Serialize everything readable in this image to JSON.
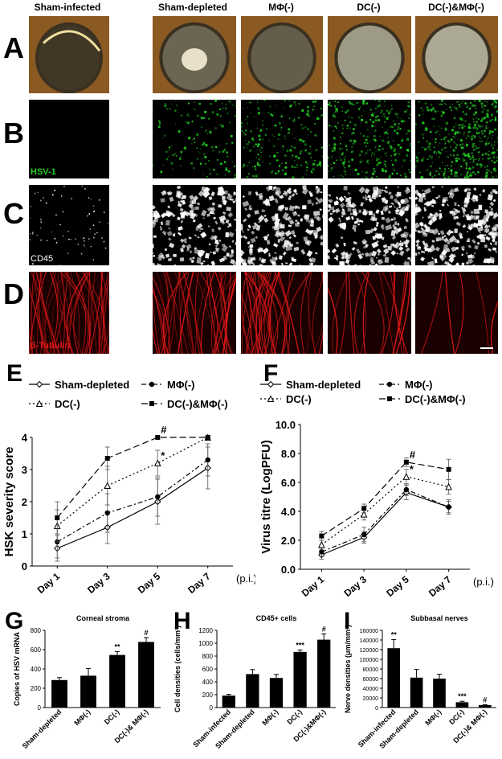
{
  "columns": [
    "Sham-infected",
    "Sham-depleted",
    "MΦ(-)",
    "DC(-)",
    "DC(-)&MΦ(-)"
  ],
  "rows": [
    "A",
    "B",
    "C",
    "D"
  ],
  "row_labels": {
    "B": "HSV-1",
    "C": "CD45",
    "D": "β-Tubulin"
  },
  "colors": {
    "hsv": "#22cc22",
    "cd45": "#ffffff",
    "tubulin": "#e01818"
  },
  "panels": {
    "E": "E",
    "F": "F",
    "G": "G",
    "H": "H",
    "I": "I"
  },
  "chart_data": [
    {
      "id": "E",
      "type": "line",
      "ylabel": "HSK severity score",
      "categories": [
        "Day 1",
        "Day 3",
        "Day 5",
        "Day 7"
      ],
      "x_suffix": "(p.i.)",
      "ylim": [
        0,
        4
      ],
      "yticks": [
        0,
        1,
        2,
        3,
        4
      ],
      "series": [
        {
          "name": "Sham-depleted",
          "values": [
            0.55,
            1.2,
            2.0,
            3.05
          ],
          "err": [
            0.4,
            0.5,
            0.7,
            0.65
          ],
          "marker": "diamond",
          "dash": ""
        },
        {
          "name": "MΦ(-)",
          "values": [
            0.75,
            1.65,
            2.15,
            3.3
          ],
          "err": [
            0.5,
            0.6,
            0.6,
            0.5
          ],
          "marker": "circle",
          "dash": "6,3,2,3"
        },
        {
          "name": "DC(-)",
          "values": [
            1.25,
            2.5,
            3.2,
            4.0
          ],
          "err": [
            0.5,
            0.6,
            0.4,
            0.0
          ],
          "marker": "triangle",
          "dash": "2,3"
        },
        {
          "name": "DC(-)&MΦ(-)",
          "values": [
            1.5,
            3.35,
            4.0,
            4.0
          ],
          "err": [
            0.5,
            0.35,
            0.0,
            0.0
          ],
          "marker": "square",
          "dash": "8,4"
        }
      ],
      "annotations": [
        {
          "text": "#",
          "x": "Day 5",
          "y": 4.0
        },
        {
          "text": "*",
          "x": "Day 5",
          "y": 3.2
        }
      ]
    },
    {
      "id": "F",
      "type": "line",
      "ylabel": "Virus titre (LogPFU)",
      "categories": [
        "Day 1",
        "Day 3",
        "Day 5",
        "Day 7"
      ],
      "x_suffix": "(p.i.)",
      "ylim": [
        0,
        10
      ],
      "yticks": [
        "0.0",
        "2.0",
        "4.0",
        "6.0",
        "8.0",
        "10.0"
      ],
      "series": [
        {
          "name": "Sham-depleted",
          "values": [
            1.0,
            2.2,
            5.3,
            4.3
          ],
          "err": [
            0.3,
            0.4,
            0.5,
            0.4
          ],
          "marker": "diamond",
          "dash": ""
        },
        {
          "name": "MΦ(-)",
          "values": [
            1.2,
            2.4,
            5.5,
            4.3
          ],
          "err": [
            0.3,
            0.5,
            0.4,
            0.5
          ],
          "marker": "circle",
          "dash": "6,3,2,3"
        },
        {
          "name": "DC(-)",
          "values": [
            1.7,
            3.8,
            6.4,
            5.7
          ],
          "err": [
            0.3,
            0.4,
            0.5,
            0.5
          ],
          "marker": "triangle",
          "dash": "2,3"
        },
        {
          "name": "DC(-)&MΦ(-)",
          "values": [
            2.3,
            4.2,
            7.4,
            6.9
          ],
          "err": [
            0.3,
            0.3,
            0.3,
            0.7
          ],
          "marker": "square",
          "dash": "8,4"
        }
      ],
      "annotations": [
        {
          "text": "#",
          "x": "Day 5",
          "y": 7.4
        },
        {
          "text": "*",
          "x": "Day 5",
          "y": 6.4
        }
      ]
    },
    {
      "id": "G",
      "type": "bar",
      "title": "Corneal stroma",
      "ylabel": "Copies of HSV mRNA",
      "categories": [
        "Sham-depleted",
        "MΦ(-)",
        "DC(-)",
        "DC(-)& MΦ(-)"
      ],
      "values": [
        285,
        330,
        545,
        680
      ],
      "err": [
        25,
        75,
        35,
        45
      ],
      "ylim": [
        0,
        800
      ],
      "yticks": [
        0,
        200,
        400,
        600,
        800
      ],
      "sig": [
        "",
        "",
        "**",
        "#"
      ]
    },
    {
      "id": "H",
      "type": "bar",
      "title": "CD45+ cells",
      "ylabel": "Cell densities (cells/mm²)",
      "categories": [
        "Sham-infected",
        "Sham-depleted",
        "MΦ(-)",
        "DC(-)",
        "DC(-)&MΦ(-)"
      ],
      "values": [
        185,
        520,
        460,
        865,
        1055
      ],
      "err": [
        20,
        70,
        55,
        30,
        90
      ],
      "ylim": [
        0,
        1200
      ],
      "yticks": [
        0,
        200,
        400,
        600,
        800,
        1000,
        1200
      ],
      "sig": [
        "",
        "",
        "",
        "***",
        "#"
      ]
    },
    {
      "id": "I",
      "type": "bar",
      "title": "Subbasal nerves",
      "ylabel": "Nerve densities (μm/mm²)",
      "categories": [
        "Sham-infected",
        "Sham-depleted",
        "MΦ(-)",
        "DC(-)",
        "DC(-)& MΦ(-)"
      ],
      "values": [
        123000,
        62000,
        60000,
        11000,
        5000
      ],
      "err": [
        18000,
        17000,
        9000,
        2000,
        1000
      ],
      "ylim": [
        0,
        160000
      ],
      "yticks": [
        0,
        20000,
        40000,
        60000,
        80000,
        100000,
        120000,
        140000,
        160000
      ],
      "sig": [
        "**",
        "",
        "",
        "***",
        "#"
      ]
    }
  ]
}
